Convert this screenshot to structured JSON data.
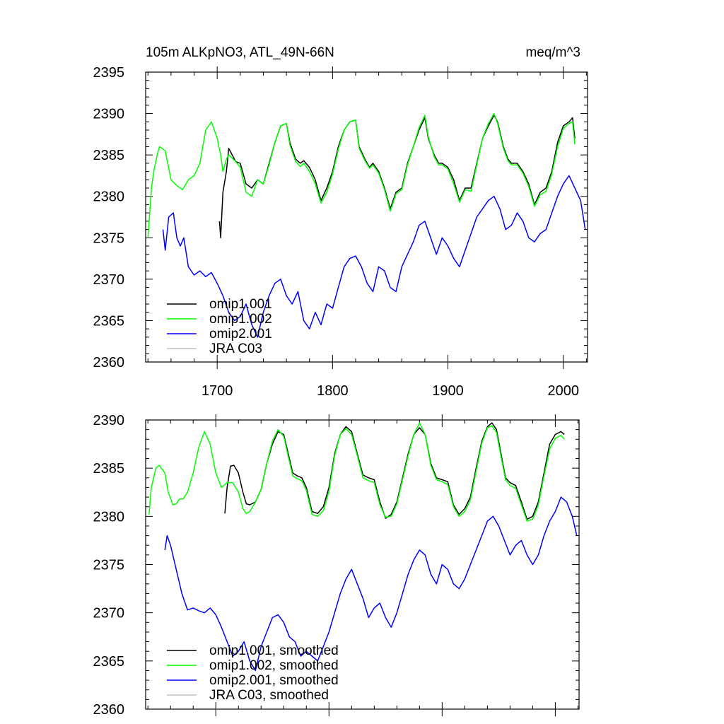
{
  "chart_data": [
    {
      "type": "line",
      "title": "105m ALKpNO3, ATL_49N-66N",
      "units": "meq/m^3",
      "xlabel": "",
      "ylabel": "",
      "xlim": [
        1638,
        2021
      ],
      "ylim": [
        2360,
        2395
      ],
      "xticks": [
        1700,
        1800,
        1900,
        2000
      ],
      "xtick_labels": [
        "1700",
        "1800",
        "1900",
        "2000"
      ],
      "yticks": [
        2360,
        2365,
        2370,
        2375,
        2380,
        2385,
        2390,
        2395
      ],
      "ytick_labels": [
        "2360",
        "2365",
        "2370",
        "2375",
        "2380",
        "2385",
        "2390",
        "2395"
      ],
      "legend_position": "lower-left",
      "series": [
        {
          "name": "omip1.001",
          "color": "#000000",
          "x": [
            1702,
            1703,
            1705,
            1708,
            1710,
            1713,
            1716,
            1720,
            1725,
            1730,
            1735,
            1740,
            1745,
            1750,
            1755,
            1760,
            1763,
            1768,
            1772,
            1775,
            1780,
            1785,
            1790,
            1795,
            1800,
            1805,
            1810,
            1815,
            1820,
            1823,
            1828,
            1832,
            1835,
            1840,
            1845,
            1850,
            1855,
            1860,
            1865,
            1870,
            1875,
            1880,
            1883,
            1888,
            1892,
            1895,
            1900,
            1905,
            1910,
            1915,
            1920,
            1925,
            1930,
            1935,
            1940,
            1943,
            1948,
            1952,
            1955,
            1960,
            1965,
            1970,
            1975,
            1980,
            1985,
            1990,
            1995,
            2000,
            2005,
            2008,
            2010
          ],
          "y": [
            2377,
            2375,
            2380.5,
            2383,
            2385.8,
            2385,
            2384.2,
            2384,
            2381.5,
            2381,
            2382,
            2381.5,
            2384,
            2386.5,
            2388.5,
            2388.8,
            2386.5,
            2384.5,
            2384,
            2384.3,
            2383.5,
            2382,
            2379.5,
            2381,
            2383,
            2386,
            2388,
            2389,
            2389.2,
            2386,
            2384.5,
            2383.5,
            2384,
            2383,
            2381,
            2378.5,
            2380.5,
            2381,
            2384,
            2386,
            2388,
            2389.5,
            2387,
            2385,
            2384,
            2384,
            2383.5,
            2382,
            2379.5,
            2381,
            2381,
            2384,
            2387,
            2388.5,
            2389.8,
            2389,
            2386,
            2384.5,
            2384,
            2384,
            2383,
            2381.5,
            2379,
            2380.5,
            2381,
            2383,
            2386.5,
            2388.5,
            2389,
            2389.5,
            2387
          ]
        },
        {
          "name": "omip1.002",
          "color": "#00ff00",
          "x": [
            1640,
            1643,
            1645,
            1648,
            1650,
            1655,
            1660,
            1665,
            1670,
            1675,
            1680,
            1685,
            1690,
            1695,
            1700,
            1703,
            1705,
            1708,
            1710,
            1713,
            1716,
            1720,
            1725,
            1730,
            1735,
            1740,
            1745,
            1750,
            1755,
            1760,
            1763,
            1768,
            1772,
            1775,
            1780,
            1785,
            1790,
            1795,
            1800,
            1805,
            1810,
            1815,
            1820,
            1823,
            1828,
            1832,
            1835,
            1840,
            1845,
            1850,
            1855,
            1860,
            1865,
            1870,
            1875,
            1880,
            1883,
            1888,
            1892,
            1895,
            1900,
            1905,
            1910,
            1915,
            1920,
            1925,
            1930,
            1935,
            1940,
            1943,
            1948,
            1952,
            1955,
            1960,
            1965,
            1970,
            1975,
            1980,
            1985,
            1990,
            1995,
            2000,
            2005,
            2008,
            2010
          ],
          "y": [
            2375,
            2381,
            2383,
            2385,
            2386,
            2385.5,
            2382,
            2381.3,
            2380.8,
            2382,
            2382.5,
            2384,
            2388,
            2389,
            2387,
            2385,
            2383,
            2384.5,
            2385,
            2384.6,
            2384.2,
            2383.5,
            2380.5,
            2380,
            2382,
            2381.5,
            2383.8,
            2386.5,
            2388.5,
            2388.8,
            2386.2,
            2384.2,
            2383.6,
            2384,
            2383,
            2381.5,
            2379.2,
            2380.5,
            2382.7,
            2385.7,
            2388,
            2389,
            2389.2,
            2385.8,
            2384.3,
            2383.4,
            2383.8,
            2382.8,
            2380.8,
            2378.2,
            2380.3,
            2380.8,
            2383.8,
            2386,
            2388.3,
            2389.8,
            2387.2,
            2384.8,
            2383.8,
            2383.8,
            2383.3,
            2381.5,
            2379.3,
            2380.8,
            2380.6,
            2383.8,
            2387,
            2388.8,
            2390,
            2388.8,
            2385.8,
            2384.3,
            2383.8,
            2383.8,
            2382.8,
            2381.2,
            2378.8,
            2380.2,
            2380.6,
            2382.7,
            2386,
            2388.2,
            2388.8,
            2389,
            2386.3
          ]
        },
        {
          "name": "omip2.001",
          "color": "#0000ff",
          "x": [
            1653,
            1655,
            1658,
            1662,
            1665,
            1668,
            1671,
            1675,
            1680,
            1685,
            1690,
            1695,
            1700,
            1705,
            1710,
            1715,
            1720,
            1725,
            1730,
            1735,
            1740,
            1745,
            1750,
            1755,
            1760,
            1765,
            1770,
            1775,
            1780,
            1785,
            1790,
            1795,
            1800,
            1805,
            1810,
            1815,
            1820,
            1825,
            1830,
            1835,
            1840,
            1845,
            1850,
            1855,
            1860,
            1865,
            1870,
            1875,
            1880,
            1885,
            1890,
            1895,
            1900,
            1905,
            1910,
            1915,
            1920,
            1925,
            1930,
            1935,
            1940,
            1945,
            1950,
            1955,
            1960,
            1965,
            1970,
            1975,
            1980,
            1985,
            1990,
            1995,
            2000,
            2005,
            2010,
            2015,
            2019
          ],
          "y": [
            2376,
            2373.5,
            2377.5,
            2378,
            2375,
            2374,
            2375,
            2371.5,
            2370.5,
            2371,
            2370.3,
            2370.8,
            2369.5,
            2368,
            2366,
            2365,
            2365.5,
            2367,
            2364.5,
            2363,
            2366,
            2368,
            2369.5,
            2370,
            2368,
            2367,
            2368.5,
            2365,
            2364,
            2366,
            2364.5,
            2367,
            2366.5,
            2369,
            2371.5,
            2372.5,
            2372.8,
            2371.5,
            2369.5,
            2368.5,
            2371.5,
            2371,
            2369,
            2368.5,
            2371.5,
            2373,
            2374.5,
            2376.5,
            2377,
            2375,
            2373,
            2375,
            2374,
            2372.5,
            2371.5,
            2373.5,
            2375.5,
            2377.5,
            2378.5,
            2379.5,
            2380,
            2378.5,
            2376,
            2376.5,
            2378,
            2377,
            2375,
            2374.5,
            2375.5,
            2376,
            2378,
            2380,
            2381.5,
            2382.5,
            2381,
            2379.5,
            2376
          ]
        },
        {
          "name": "JRA C03",
          "color": "#c0c0c0",
          "x": [],
          "y": []
        }
      ]
    },
    {
      "type": "line",
      "title": "",
      "xlabel": "",
      "ylabel": "",
      "xlim": [
        1638,
        2021
      ],
      "ylim": [
        2360,
        2390
      ],
      "xticks": [
        1700,
        1800,
        1900,
        2000
      ],
      "yticks": [
        2360,
        2365,
        2370,
        2375,
        2380,
        2385,
        2390
      ],
      "ytick_labels": [
        "2360",
        "2365",
        "2370",
        "2375",
        "2380",
        "2385",
        "2390"
      ],
      "legend_position": "lower-left",
      "series": [
        {
          "name": "omip1.001, smoothed",
          "color": "#000000",
          "x": [
            1708,
            1710,
            1713,
            1716,
            1720,
            1724,
            1727,
            1730,
            1735,
            1740,
            1745,
            1750,
            1755,
            1760,
            1764,
            1768,
            1772,
            1776,
            1780,
            1785,
            1790,
            1795,
            1800,
            1805,
            1810,
            1815,
            1820,
            1825,
            1830,
            1835,
            1840,
            1845,
            1850,
            1855,
            1860,
            1865,
            1870,
            1875,
            1880,
            1885,
            1890,
            1895,
            1900,
            1905,
            1910,
            1915,
            1920,
            1925,
            1930,
            1935,
            1940,
            1944,
            1948,
            1952,
            1956,
            1960,
            1965,
            1970,
            1975,
            1980,
            1985,
            1990,
            1995,
            2000,
            2005,
            2008
          ],
          "y": [
            2380.3,
            2383,
            2385.2,
            2385.3,
            2384.5,
            2382.5,
            2381.3,
            2381.2,
            2381.5,
            2382.8,
            2385.5,
            2387.5,
            2388.8,
            2388.5,
            2386.5,
            2384.5,
            2384.2,
            2384,
            2383,
            2380.5,
            2380.3,
            2381,
            2383,
            2386.5,
            2388.5,
            2389.3,
            2388.8,
            2386.5,
            2384.3,
            2384,
            2383.8,
            2381.5,
            2379.8,
            2380.2,
            2381.5,
            2384,
            2386.5,
            2388.5,
            2389.2,
            2388.5,
            2385.5,
            2384,
            2383.8,
            2383.6,
            2381.2,
            2380.2,
            2380.8,
            2382,
            2385,
            2387.8,
            2389.3,
            2389.7,
            2389,
            2386.5,
            2384,
            2383.5,
            2383.2,
            2381.5,
            2379.7,
            2380,
            2381.5,
            2384.5,
            2387.5,
            2388.5,
            2388.8,
            2388.5
          ]
        },
        {
          "name": "omip1.002, smoothed",
          "color": "#00ff00",
          "x": [
            1641,
            1643,
            1647,
            1650,
            1655,
            1658,
            1662,
            1665,
            1668,
            1671,
            1675,
            1680,
            1685,
            1690,
            1695,
            1700,
            1705,
            1710,
            1715,
            1720,
            1724,
            1727,
            1730,
            1735,
            1740,
            1745,
            1750,
            1755,
            1760,
            1764,
            1768,
            1772,
            1776,
            1780,
            1785,
            1790,
            1795,
            1800,
            1805,
            1810,
            1815,
            1820,
            1825,
            1830,
            1835,
            1840,
            1845,
            1850,
            1855,
            1860,
            1865,
            1870,
            1875,
            1880,
            1885,
            1890,
            1895,
            1900,
            1905,
            1910,
            1915,
            1920,
            1925,
            1930,
            1935,
            1940,
            1944,
            1948,
            1952,
            1956,
            1960,
            1965,
            1970,
            1975,
            1980,
            1985,
            1990,
            1995,
            2000,
            2005,
            2008
          ],
          "y": [
            2380.2,
            2383,
            2385,
            2385.3,
            2384.5,
            2382.5,
            2381.2,
            2381.3,
            2381.8,
            2381.8,
            2382.5,
            2384.5,
            2387.2,
            2388.8,
            2387.5,
            2384.5,
            2383,
            2383.5,
            2383.5,
            2382.5,
            2380.8,
            2380.3,
            2380.5,
            2381.5,
            2382.8,
            2385.5,
            2387.8,
            2389,
            2388.3,
            2386.2,
            2384.2,
            2383.9,
            2383.7,
            2382.7,
            2380.2,
            2380,
            2380.6,
            2382.6,
            2386.3,
            2388.5,
            2389.1,
            2388.5,
            2386.3,
            2384,
            2383.7,
            2383.5,
            2381.2,
            2379.9,
            2380,
            2381.3,
            2383.8,
            2386.3,
            2388.5,
            2389.7,
            2388.5,
            2385.3,
            2383.8,
            2383.6,
            2383.3,
            2381,
            2380,
            2380.5,
            2381.7,
            2384.7,
            2387.6,
            2389.2,
            2389.4,
            2388.7,
            2386.2,
            2383.8,
            2383.2,
            2382.9,
            2381.2,
            2379.5,
            2379.7,
            2381.2,
            2384.2,
            2387,
            2388.1,
            2388.4,
            2388
          ]
        },
        {
          "name": "omip2.001, smoothed",
          "color": "#0000ff",
          "x": [
            1655,
            1657,
            1660,
            1665,
            1670,
            1675,
            1680,
            1685,
            1690,
            1695,
            1700,
            1705,
            1710,
            1715,
            1720,
            1725,
            1730,
            1735,
            1740,
            1745,
            1750,
            1755,
            1760,
            1765,
            1770,
            1775,
            1780,
            1785,
            1790,
            1795,
            1800,
            1805,
            1810,
            1815,
            1820,
            1825,
            1830,
            1835,
            1840,
            1845,
            1850,
            1855,
            1860,
            1865,
            1870,
            1875,
            1880,
            1885,
            1890,
            1895,
            1900,
            1905,
            1910,
            1915,
            1920,
            1925,
            1930,
            1935,
            1940,
            1945,
            1950,
            1955,
            1960,
            1965,
            1970,
            1975,
            1980,
            1985,
            1990,
            1995,
            2000,
            2005,
            2010,
            2015,
            2019
          ],
          "y": [
            2376.5,
            2378,
            2377,
            2374.5,
            2372,
            2370.3,
            2370.5,
            2370.2,
            2370,
            2370.5,
            2369.8,
            2368.5,
            2367,
            2365.5,
            2366,
            2367,
            2365,
            2364,
            2366.5,
            2368,
            2369.5,
            2369.8,
            2369,
            2367.5,
            2367,
            2365.5,
            2366,
            2365.5,
            2365,
            2366.5,
            2368,
            2370,
            2372,
            2373.5,
            2374.5,
            2373,
            2371.5,
            2369.5,
            2370.5,
            2371,
            2369.5,
            2368.5,
            2370,
            2372,
            2374,
            2375.5,
            2376.5,
            2376,
            2374,
            2373,
            2375,
            2374.5,
            2373,
            2372.5,
            2373.5,
            2375,
            2376.5,
            2378,
            2379.5,
            2380,
            2379,
            2377.5,
            2376,
            2377,
            2377.5,
            2376,
            2375,
            2376,
            2378,
            2379.5,
            2380.5,
            2382,
            2381.5,
            2380,
            2378
          ]
        },
        {
          "name": "JRA C03, smoothed",
          "color": "#c0c0c0",
          "x": [],
          "y": []
        }
      ]
    }
  ]
}
